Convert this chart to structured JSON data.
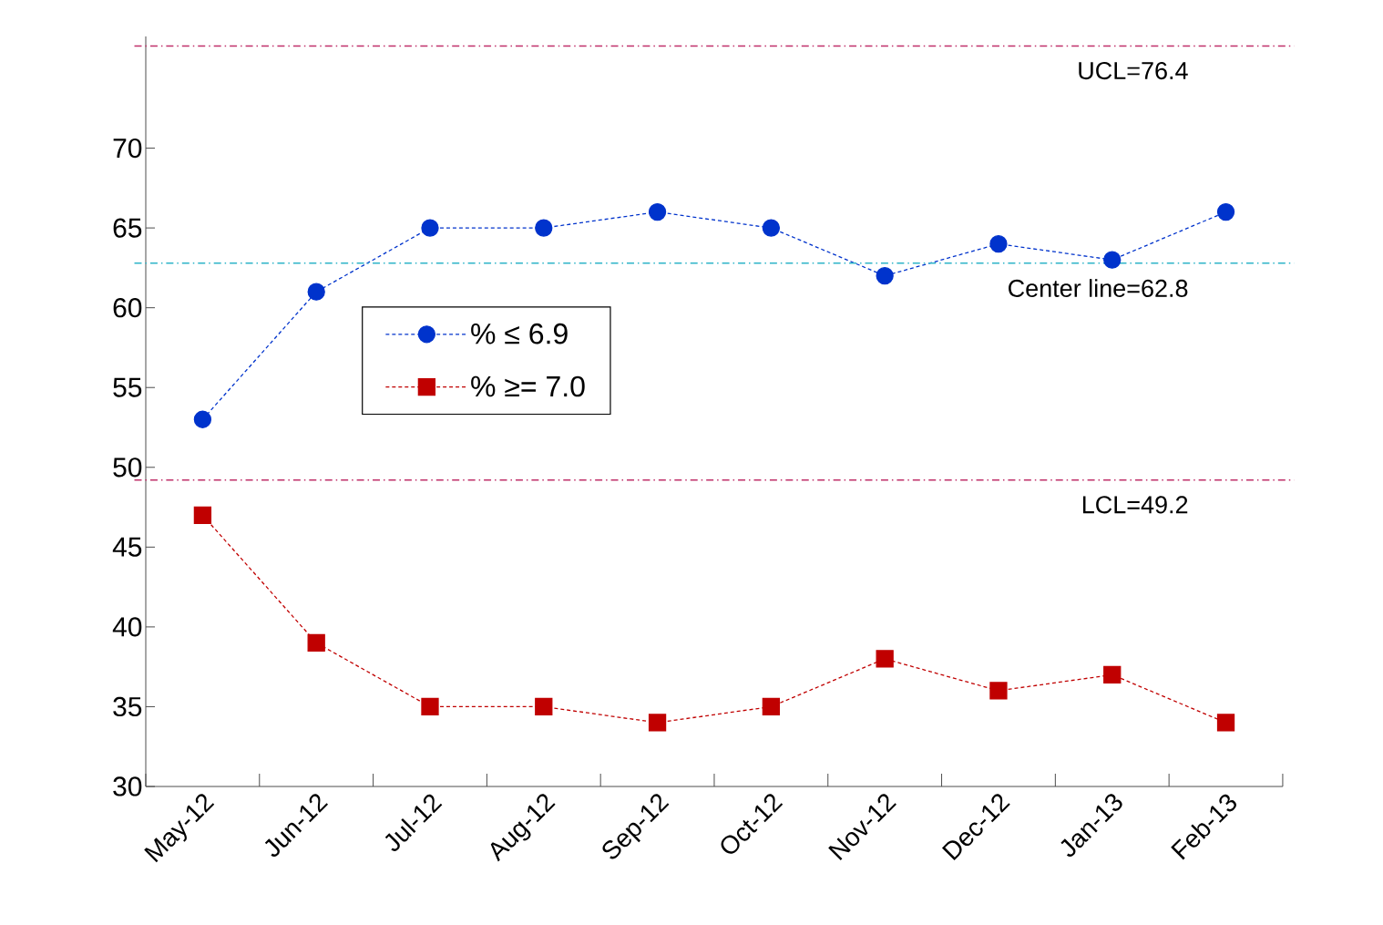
{
  "chart_data": {
    "type": "line",
    "categories": [
      "May-12",
      "Jun-12",
      "Jul-12",
      "Aug-12",
      "Sep-12",
      "Oct-12",
      "Nov-12",
      "Dec-12",
      "Jan-13",
      "Feb-13"
    ],
    "series": [
      {
        "name": "% ≤ 6.9",
        "color": "#0033cc",
        "marker": "circle",
        "values": [
          53,
          61,
          65,
          65,
          66,
          65,
          62,
          64,
          63,
          66
        ]
      },
      {
        "name": "% ≥= 7.0",
        "color": "#c00000",
        "marker": "square",
        "values": [
          47,
          39,
          35,
          35,
          34,
          35,
          38,
          36,
          37,
          34
        ]
      }
    ],
    "line_style": "dashed",
    "ylim": [
      30,
      77
    ],
    "yticks": [
      30,
      35,
      40,
      45,
      50,
      55,
      60,
      65,
      70
    ],
    "grid": false,
    "legend": "top left",
    "ref_lines": [
      {
        "axis": "y",
        "value": 76.4,
        "label": "UCL=76.4",
        "color": "#c0306a",
        "line_style": "dashdot"
      },
      {
        "axis": "y",
        "value": 62.8,
        "label": "Center line=62.8",
        "color": "#2eb4c8",
        "line_style": "dashdot"
      },
      {
        "axis": "y",
        "value": 49.2,
        "label": "LCL=49.2",
        "color": "#c0306a",
        "line_style": "dashdot"
      }
    ]
  }
}
